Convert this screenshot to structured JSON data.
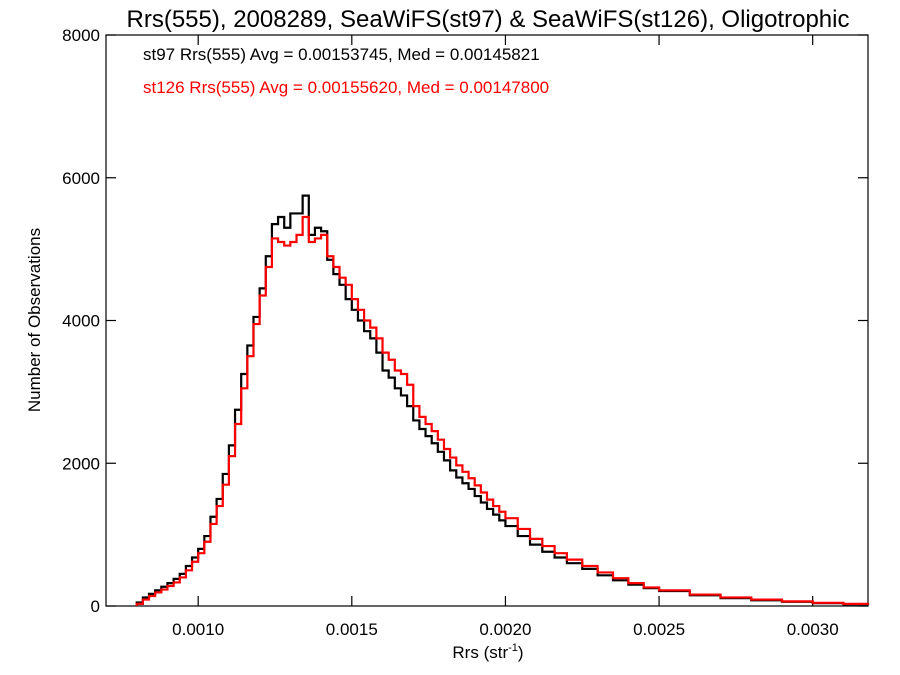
{
  "chart_data": {
    "type": "line",
    "title": "Rrs(555), 2008289, SeaWiFS(st97) & SeaWiFS(st126), Oligotrophic",
    "xlabel": "Rrs (str",
    "xlabel_sup": "-1",
    "xlabel_close": ")",
    "ylabel": "Number of Observations",
    "xlim": [
      0.0007,
      0.00318
    ],
    "ylim": [
      0,
      8000
    ],
    "x_ticks": [
      0.001,
      0.0015,
      0.002,
      0.0025,
      0.003
    ],
    "x_tick_labels": [
      "0.0010",
      "0.0015",
      "0.0020",
      "0.0025",
      "0.0030"
    ],
    "y_ticks": [
      0,
      2000,
      4000,
      6000,
      8000
    ],
    "y_tick_labels": [
      "0",
      "2000",
      "4000",
      "6000",
      "8000"
    ],
    "grid": false,
    "legend_position": "top-left",
    "series": [
      {
        "name": "st97 Rrs(555) Avg = 0.00153745, Med = 0.00145821",
        "color": "#000000",
        "x": [
          0.0008,
          0.00082,
          0.00084,
          0.00086,
          0.00088,
          0.0009,
          0.00092,
          0.00094,
          0.00096,
          0.00098,
          0.001,
          0.00102,
          0.00104,
          0.00106,
          0.00108,
          0.0011,
          0.00112,
          0.00114,
          0.00116,
          0.00118,
          0.0012,
          0.00122,
          0.00124,
          0.00126,
          0.00128,
          0.0013,
          0.00132,
          0.00134,
          0.00136,
          0.00138,
          0.0014,
          0.00142,
          0.00144,
          0.00146,
          0.00148,
          0.0015,
          0.00152,
          0.00154,
          0.00156,
          0.00158,
          0.0016,
          0.00162,
          0.00164,
          0.00166,
          0.00168,
          0.0017,
          0.00172,
          0.00174,
          0.00176,
          0.00178,
          0.0018,
          0.00182,
          0.00184,
          0.00186,
          0.00188,
          0.0019,
          0.00192,
          0.00194,
          0.00196,
          0.00198,
          0.002,
          0.00204,
          0.00208,
          0.00212,
          0.00216,
          0.0022,
          0.00225,
          0.0023,
          0.00235,
          0.0024,
          0.00245,
          0.0025,
          0.0026,
          0.0027,
          0.0028,
          0.0029,
          0.003,
          0.0031,
          0.00318
        ],
        "y": [
          50,
          120,
          170,
          220,
          270,
          320,
          380,
          450,
          560,
          680,
          800,
          980,
          1250,
          1500,
          1850,
          2250,
          2750,
          3250,
          3650,
          4050,
          4450,
          4900,
          5350,
          5450,
          5300,
          5500,
          5500,
          5750,
          5200,
          5300,
          5250,
          4850,
          4650,
          4500,
          4300,
          4150,
          4000,
          3850,
          3750,
          3550,
          3300,
          3200,
          3050,
          2950,
          2800,
          2600,
          2480,
          2380,
          2280,
          2160,
          2040,
          1900,
          1800,
          1720,
          1640,
          1540,
          1450,
          1360,
          1280,
          1200,
          1120,
          980,
          860,
          760,
          680,
          600,
          520,
          430,
          360,
          300,
          250,
          210,
          150,
          110,
          80,
          60,
          40,
          25,
          15
        ]
      },
      {
        "name": "st126 Rrs(555) Avg = 0.00155620, Med = 0.00147800",
        "color": "#ff0000",
        "x": [
          0.0008,
          0.00082,
          0.00084,
          0.00086,
          0.00088,
          0.0009,
          0.00092,
          0.00094,
          0.00096,
          0.00098,
          0.001,
          0.00102,
          0.00104,
          0.00106,
          0.00108,
          0.0011,
          0.00112,
          0.00114,
          0.00116,
          0.00118,
          0.0012,
          0.00122,
          0.00124,
          0.00126,
          0.00128,
          0.0013,
          0.00132,
          0.00134,
          0.00136,
          0.00138,
          0.0014,
          0.00142,
          0.00144,
          0.00146,
          0.00148,
          0.0015,
          0.00152,
          0.00154,
          0.00156,
          0.00158,
          0.0016,
          0.00162,
          0.00164,
          0.00166,
          0.00168,
          0.0017,
          0.00172,
          0.00174,
          0.00176,
          0.00178,
          0.0018,
          0.00182,
          0.00184,
          0.00186,
          0.00188,
          0.0019,
          0.00192,
          0.00194,
          0.00196,
          0.00198,
          0.002,
          0.00204,
          0.00208,
          0.00212,
          0.00216,
          0.0022,
          0.00225,
          0.0023,
          0.00235,
          0.0024,
          0.00245,
          0.0025,
          0.0026,
          0.0027,
          0.0028,
          0.0029,
          0.003,
          0.0031,
          0.00318
        ],
        "y": [
          30,
          90,
          140,
          190,
          230,
          280,
          330,
          400,
          500,
          620,
          740,
          900,
          1150,
          1400,
          1700,
          2100,
          2550,
          3050,
          3500,
          3950,
          4350,
          4750,
          5150,
          5100,
          5050,
          5100,
          5200,
          5450,
          5100,
          5150,
          5200,
          4900,
          4750,
          4600,
          4500,
          4300,
          4150,
          4000,
          3900,
          3750,
          3550,
          3450,
          3300,
          3250,
          3100,
          2800,
          2650,
          2550,
          2450,
          2330,
          2200,
          2080,
          1970,
          1880,
          1790,
          1690,
          1590,
          1490,
          1400,
          1320,
          1230,
          1080,
          940,
          840,
          740,
          650,
          560,
          470,
          390,
          320,
          260,
          220,
          160,
          120,
          90,
          65,
          45,
          30,
          20
        ]
      }
    ]
  }
}
